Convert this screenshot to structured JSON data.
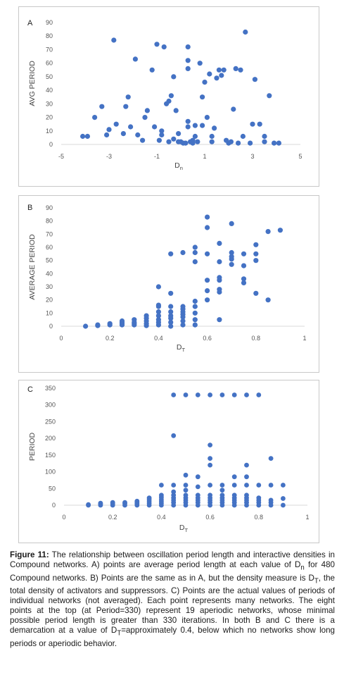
{
  "chart_data": [
    {
      "type": "scatter",
      "panel_label": "A",
      "ylabel": "AVG PERIOD",
      "xlabel_main": "D",
      "xlabel_sub": "n",
      "xlim": [
        -5,
        5
      ],
      "ylim": [
        0,
        90
      ],
      "xticks": [
        -5,
        -3,
        -1,
        1,
        3,
        5
      ],
      "yticks": [
        0,
        10,
        20,
        30,
        40,
        50,
        60,
        70,
        80,
        90
      ],
      "color": "#4472c4",
      "points": [
        [
          -4.1,
          6
        ],
        [
          -3.9,
          6
        ],
        [
          -3.6,
          20
        ],
        [
          -3.3,
          28
        ],
        [
          -3.1,
          7
        ],
        [
          -3.0,
          11
        ],
        [
          -2.8,
          77
        ],
        [
          -2.7,
          15
        ],
        [
          -2.4,
          8
        ],
        [
          -2.3,
          28
        ],
        [
          -2.2,
          35
        ],
        [
          -2.1,
          13
        ],
        [
          -1.9,
          63
        ],
        [
          -1.8,
          7
        ],
        [
          -1.6,
          3
        ],
        [
          -1.5,
          20
        ],
        [
          -1.4,
          25
        ],
        [
          -1.2,
          55
        ],
        [
          -1.1,
          13
        ],
        [
          -1.0,
          74
        ],
        [
          -0.9,
          3
        ],
        [
          -0.8,
          10
        ],
        [
          -0.8,
          7
        ],
        [
          -0.7,
          72
        ],
        [
          -0.6,
          30
        ],
        [
          -0.5,
          32
        ],
        [
          -0.5,
          2
        ],
        [
          -0.4,
          36
        ],
        [
          -0.3,
          50
        ],
        [
          -0.3,
          4
        ],
        [
          -0.2,
          25
        ],
        [
          -0.1,
          8
        ],
        [
          -0.1,
          2
        ],
        [
          0.0,
          2
        ],
        [
          0.1,
          1
        ],
        [
          0.2,
          1
        ],
        [
          0.3,
          56
        ],
        [
          0.3,
          62
        ],
        [
          0.3,
          72
        ],
        [
          0.3,
          13
        ],
        [
          0.3,
          17
        ],
        [
          0.4,
          2
        ],
        [
          0.5,
          1
        ],
        [
          0.5,
          3
        ],
        [
          0.6,
          6
        ],
        [
          0.6,
          14
        ],
        [
          0.7,
          2
        ],
        [
          0.8,
          60
        ],
        [
          0.9,
          35
        ],
        [
          0.9,
          14
        ],
        [
          1.0,
          46
        ],
        [
          1.1,
          20
        ],
        [
          1.2,
          52
        ],
        [
          1.3,
          6
        ],
        [
          1.3,
          2
        ],
        [
          1.4,
          12
        ],
        [
          1.5,
          49
        ],
        [
          1.6,
          55
        ],
        [
          1.7,
          51
        ],
        [
          1.8,
          55
        ],
        [
          1.9,
          3
        ],
        [
          2.0,
          1
        ],
        [
          2.1,
          2
        ],
        [
          2.2,
          26
        ],
        [
          2.3,
          56
        ],
        [
          2.4,
          1
        ],
        [
          2.5,
          55
        ],
        [
          2.6,
          6
        ],
        [
          2.7,
          83
        ],
        [
          2.9,
          1
        ],
        [
          3.0,
          15
        ],
        [
          3.1,
          48
        ],
        [
          3.3,
          15
        ],
        [
          3.5,
          2
        ],
        [
          3.5,
          6
        ],
        [
          3.7,
          36
        ],
        [
          3.9,
          1
        ],
        [
          4.1,
          1
        ]
      ]
    },
    {
      "type": "scatter",
      "panel_label": "B",
      "ylabel": "AVERAGE PERIOD",
      "xlabel_main": "D",
      "xlabel_sub": "T",
      "xlim": [
        0,
        1
      ],
      "ylim": [
        0,
        90
      ],
      "xticks": [
        0,
        0.2,
        0.4,
        0.6,
        0.8,
        1
      ],
      "yticks": [
        0,
        10,
        20,
        30,
        40,
        50,
        60,
        70,
        80,
        90
      ],
      "color": "#4472c4",
      "points": [
        [
          0.1,
          0
        ],
        [
          0.15,
          0.5
        ],
        [
          0.15,
          1
        ],
        [
          0.2,
          1
        ],
        [
          0.2,
          2
        ],
        [
          0.25,
          1
        ],
        [
          0.25,
          2
        ],
        [
          0.25,
          3
        ],
        [
          0.25,
          4
        ],
        [
          0.3,
          1
        ],
        [
          0.3,
          2
        ],
        [
          0.3,
          3
        ],
        [
          0.3,
          5
        ],
        [
          0.35,
          0.5
        ],
        [
          0.35,
          2
        ],
        [
          0.35,
          4
        ],
        [
          0.35,
          6
        ],
        [
          0.35,
          8
        ],
        [
          0.4,
          1
        ],
        [
          0.4,
          3
        ],
        [
          0.4,
          5
        ],
        [
          0.4,
          8
        ],
        [
          0.4,
          11
        ],
        [
          0.4,
          15
        ],
        [
          0.4,
          16
        ],
        [
          0.4,
          30
        ],
        [
          0.45,
          0
        ],
        [
          0.45,
          3
        ],
        [
          0.45,
          6
        ],
        [
          0.45,
          8
        ],
        [
          0.45,
          11
        ],
        [
          0.45,
          15
        ],
        [
          0.45,
          25
        ],
        [
          0.45,
          55
        ],
        [
          0.5,
          1
        ],
        [
          0.5,
          4
        ],
        [
          0.5,
          7
        ],
        [
          0.5,
          9
        ],
        [
          0.5,
          11
        ],
        [
          0.5,
          13
        ],
        [
          0.5,
          15
        ],
        [
          0.5,
          56
        ],
        [
          0.55,
          1
        ],
        [
          0.55,
          5
        ],
        [
          0.55,
          10
        ],
        [
          0.55,
          15
        ],
        [
          0.55,
          19
        ],
        [
          0.55,
          49
        ],
        [
          0.55,
          56
        ],
        [
          0.55,
          60
        ],
        [
          0.6,
          20
        ],
        [
          0.6,
          27
        ],
        [
          0.6,
          35
        ],
        [
          0.6,
          55
        ],
        [
          0.6,
          75
        ],
        [
          0.6,
          83
        ],
        [
          0.65,
          5
        ],
        [
          0.65,
          26
        ],
        [
          0.65,
          28
        ],
        [
          0.65,
          35
        ],
        [
          0.65,
          37
        ],
        [
          0.65,
          49
        ],
        [
          0.65,
          63
        ],
        [
          0.7,
          47
        ],
        [
          0.7,
          51
        ],
        [
          0.7,
          53
        ],
        [
          0.7,
          56
        ],
        [
          0.7,
          78
        ],
        [
          0.75,
          33
        ],
        [
          0.75,
          36
        ],
        [
          0.75,
          46
        ],
        [
          0.75,
          55
        ],
        [
          0.8,
          25
        ],
        [
          0.8,
          50
        ],
        [
          0.8,
          55
        ],
        [
          0.8,
          62
        ],
        [
          0.85,
          20
        ],
        [
          0.85,
          72
        ],
        [
          0.9,
          73
        ]
      ]
    },
    {
      "type": "scatter",
      "panel_label": "C",
      "ylabel": "PERIOD",
      "xlabel_main": "D",
      "xlabel_sub": "T",
      "xlim": [
        0,
        1
      ],
      "ylim": [
        0,
        350
      ],
      "xticks": [
        0,
        0.2,
        0.4,
        0.6,
        0.8,
        1
      ],
      "yticks": [
        0,
        50,
        100,
        150,
        200,
        250,
        300,
        350
      ],
      "color": "#4472c4",
      "points": [
        [
          0.1,
          0
        ],
        [
          0.1,
          2
        ],
        [
          0.15,
          0
        ],
        [
          0.15,
          3
        ],
        [
          0.15,
          6
        ],
        [
          0.2,
          0
        ],
        [
          0.2,
          4
        ],
        [
          0.2,
          8
        ],
        [
          0.25,
          0
        ],
        [
          0.25,
          5
        ],
        [
          0.25,
          8
        ],
        [
          0.3,
          0
        ],
        [
          0.3,
          4
        ],
        [
          0.3,
          8
        ],
        [
          0.3,
          12
        ],
        [
          0.35,
          0
        ],
        [
          0.35,
          6
        ],
        [
          0.35,
          12
        ],
        [
          0.35,
          18
        ],
        [
          0.35,
          22
        ],
        [
          0.4,
          0
        ],
        [
          0.4,
          6
        ],
        [
          0.4,
          12
        ],
        [
          0.4,
          18
        ],
        [
          0.4,
          24
        ],
        [
          0.4,
          30
        ],
        [
          0.4,
          60
        ],
        [
          0.45,
          0
        ],
        [
          0.45,
          8
        ],
        [
          0.45,
          15
        ],
        [
          0.45,
          22
        ],
        [
          0.45,
          30
        ],
        [
          0.45,
          40
        ],
        [
          0.45,
          60
        ],
        [
          0.45,
          208
        ],
        [
          0.45,
          330
        ],
        [
          0.5,
          0
        ],
        [
          0.5,
          8
        ],
        [
          0.5,
          15
        ],
        [
          0.5,
          22
        ],
        [
          0.5,
          30
        ],
        [
          0.5,
          45
        ],
        [
          0.5,
          60
        ],
        [
          0.5,
          90
        ],
        [
          0.5,
          330
        ],
        [
          0.55,
          0
        ],
        [
          0.55,
          8
        ],
        [
          0.55,
          15
        ],
        [
          0.55,
          22
        ],
        [
          0.55,
          30
        ],
        [
          0.55,
          55
        ],
        [
          0.55,
          85
        ],
        [
          0.55,
          330
        ],
        [
          0.6,
          0
        ],
        [
          0.6,
          8
        ],
        [
          0.6,
          15
        ],
        [
          0.6,
          22
        ],
        [
          0.6,
          30
        ],
        [
          0.6,
          60
        ],
        [
          0.6,
          120
        ],
        [
          0.6,
          140
        ],
        [
          0.6,
          180
        ],
        [
          0.6,
          330
        ],
        [
          0.65,
          0
        ],
        [
          0.65,
          8
        ],
        [
          0.65,
          15
        ],
        [
          0.65,
          22
        ],
        [
          0.65,
          30
        ],
        [
          0.65,
          45
        ],
        [
          0.65,
          60
        ],
        [
          0.65,
          330
        ],
        [
          0.7,
          0
        ],
        [
          0.7,
          8
        ],
        [
          0.7,
          15
        ],
        [
          0.7,
          22
        ],
        [
          0.7,
          30
        ],
        [
          0.7,
          60
        ],
        [
          0.7,
          85
        ],
        [
          0.7,
          330
        ],
        [
          0.75,
          0
        ],
        [
          0.75,
          8
        ],
        [
          0.75,
          15
        ],
        [
          0.75,
          22
        ],
        [
          0.75,
          30
        ],
        [
          0.75,
          60
        ],
        [
          0.75,
          85
        ],
        [
          0.75,
          120
        ],
        [
          0.75,
          330
        ],
        [
          0.8,
          0
        ],
        [
          0.8,
          8
        ],
        [
          0.8,
          15
        ],
        [
          0.8,
          22
        ],
        [
          0.8,
          60
        ],
        [
          0.8,
          330
        ],
        [
          0.85,
          0
        ],
        [
          0.85,
          8
        ],
        [
          0.85,
          15
        ],
        [
          0.85,
          60
        ],
        [
          0.85,
          140
        ],
        [
          0.9,
          0
        ],
        [
          0.9,
          20
        ],
        [
          0.9,
          60
        ]
      ]
    }
  ],
  "caption": {
    "label": "Figure 11:",
    "seg1": " The relationship between oscillation period length and interactive densities in Compound networks. A) points are average period length at each value of D",
    "sub1": "n",
    "seg2": " for 480 Compound networks. B) Points are the same as in A, but the density measure is D",
    "sub2": "T",
    "seg3": ", the total density of activators and suppressors. C) Points are the actual values of periods of individual networks (not averaged). Each point represents many networks. The eight points at the top (at Period=330) represent 19 aperiodic networks, whose minimal possible period length is greater than 330 iterations. In both B and C there is a demarcation at a value of D",
    "sub3": "T",
    "seg4": "=approximately 0.4, below which no networks show long periods or aperiodic behavior."
  }
}
